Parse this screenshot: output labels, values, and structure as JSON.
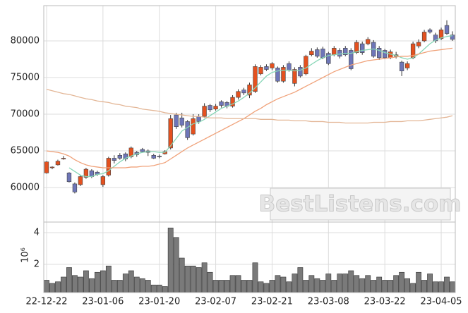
{
  "chart_data": [
    {
      "type": "candlestick",
      "watermark": "BestListens.com",
      "categories": [
        "22-12-22",
        null,
        null,
        null,
        null,
        null,
        null,
        null,
        null,
        null,
        "23-01-06",
        null,
        null,
        null,
        null,
        null,
        null,
        null,
        null,
        null,
        "23-01-20",
        null,
        null,
        null,
        null,
        null,
        null,
        null,
        null,
        null,
        "23-02-07",
        null,
        null,
        null,
        null,
        null,
        null,
        null,
        null,
        null,
        "23-02-21",
        null,
        null,
        null,
        null,
        null,
        null,
        null,
        null,
        null,
        "23-03-08",
        null,
        null,
        null,
        null,
        null,
        null,
        null,
        null,
        null,
        "23-03-22",
        null,
        null,
        null,
        null,
        null,
        null,
        null,
        null,
        null,
        "23-04-05",
        null,
        null
      ],
      "open": [
        62000,
        62700,
        63100,
        63900,
        62000,
        60500,
        60400,
        61400,
        62300,
        62100,
        60400,
        61700,
        64000,
        64400,
        64600,
        64200,
        64800,
        65200,
        65000,
        64400,
        64300,
        64600,
        65400,
        69900,
        69500,
        69000,
        67300,
        69700,
        69700,
        71200,
        70700,
        71700,
        71600,
        71100,
        72300,
        73300,
        72600,
        73100,
        75500,
        76500,
        76300,
        76300,
        74500,
        76900,
        74200,
        76400,
        75500,
        78100,
        78800,
        78900,
        78300,
        78100,
        78700,
        79000,
        78700,
        78400,
        79600,
        79600,
        79800,
        79000,
        78700,
        77700,
        77900,
        77100,
        76300,
        77700,
        79300,
        80000,
        81500,
        80800,
        80300,
        82100,
        80800
      ],
      "high": [
        63600,
        62900,
        63800,
        64300,
        62100,
        60700,
        61700,
        62700,
        62500,
        62300,
        61700,
        64200,
        64400,
        64700,
        64800,
        65600,
        65000,
        65400,
        65200,
        64600,
        64500,
        65100,
        69900,
        70200,
        70200,
        69200,
        70000,
        70000,
        71500,
        71400,
        71400,
        71900,
        71800,
        72600,
        73400,
        73600,
        74300,
        76800,
        76700,
        76800,
        77100,
        76500,
        76700,
        77200,
        76400,
        76700,
        78100,
        79000,
        79100,
        79200,
        78500,
        79300,
        79000,
        79300,
        79000,
        80100,
        79900,
        80500,
        80100,
        79300,
        78900,
        78800,
        78500,
        77300,
        77200,
        79900,
        80200,
        81500,
        81700,
        81100,
        81800,
        82800,
        81300
      ],
      "low": [
        61900,
        62500,
        63000,
        63800,
        60700,
        59200,
        60200,
        61200,
        61300,
        61600,
        60100,
        61500,
        63300,
        63800,
        63600,
        64000,
        64200,
        64800,
        64300,
        63900,
        64000,
        64500,
        65200,
        68000,
        68200,
        66500,
        67100,
        68700,
        69500,
        70300,
        70500,
        70900,
        70800,
        70900,
        72000,
        72600,
        72200,
        72900,
        75300,
        75900,
        76000,
        74300,
        74300,
        75800,
        73800,
        75000,
        75300,
        77900,
        77700,
        77500,
        76700,
        77900,
        77600,
        77900,
        76000,
        78200,
        78100,
        79400,
        77700,
        77400,
        77500,
        77500,
        77600,
        75200,
        76000,
        77500,
        79000,
        79800,
        81000,
        79700,
        80100,
        80800,
        80000
      ],
      "close": [
        63500,
        62800,
        63600,
        64000,
        60800,
        59400,
        61500,
        62500,
        61500,
        61800,
        61500,
        64000,
        63700,
        64000,
        63900,
        65400,
        64500,
        64900,
        64800,
        64000,
        64200,
        64900,
        69400,
        68300,
        68500,
        66800,
        69400,
        69000,
        71100,
        70600,
        71100,
        71200,
        71100,
        72300,
        73100,
        72900,
        74000,
        76500,
        76400,
        76100,
        76900,
        74500,
        76400,
        76000,
        76100,
        75200,
        77900,
        78600,
        77900,
        77700,
        76900,
        79000,
        77900,
        78100,
        76200,
        79800,
        78400,
        80200,
        77900,
        77700,
        77700,
        78500,
        78100,
        75900,
        76900,
        79600,
        79800,
        81200,
        81200,
        80000,
        81500,
        81000,
        80200
      ],
      "up_color": "#e4511f",
      "down_color": "#6e76b8",
      "lines": [
        {
          "color": "#86d6b6",
          "values": [
            null,
            null,
            null,
            null,
            62700,
            62200,
            61700,
            61500,
            61500,
            61800,
            61900,
            62300,
            62900,
            63500,
            64000,
            64300,
            64600,
            64800,
            64900,
            64900,
            64800,
            64800,
            65700,
            66700,
            67700,
            68200,
            68700,
            68900,
            69300,
            69800,
            70300,
            70800,
            71100,
            71400,
            71800,
            72300,
            72900,
            73600,
            74400,
            75200,
            75700,
            75900,
            76000,
            76000,
            75900,
            76000,
            76300,
            76800,
            77300,
            77700,
            78000,
            78100,
            78200,
            78300,
            78300,
            78500,
            78700,
            78800,
            78900,
            78700,
            78400,
            78200,
            78000,
            77700,
            77500,
            77700,
            78200,
            78900,
            79600,
            80100,
            80400,
            80600,
            80700
          ]
        },
        {
          "color": "#f0a27a",
          "values": [
            65000,
            64900,
            64800,
            64600,
            64300,
            63800,
            63400,
            63100,
            62900,
            62800,
            62700,
            62700,
            62700,
            62700,
            62700,
            62800,
            62800,
            62900,
            62900,
            63000,
            63200,
            63400,
            63900,
            64400,
            64900,
            65400,
            65800,
            66200,
            66600,
            67000,
            67400,
            67800,
            68200,
            68600,
            69000,
            69400,
            69900,
            70400,
            70800,
            71300,
            71700,
            72100,
            72400,
            72700,
            73000,
            73400,
            73800,
            74200,
            74600,
            75000,
            75400,
            75800,
            76100,
            76400,
            76700,
            76900,
            77100,
            77300,
            77400,
            77500,
            77600,
            77700,
            77800,
            77900,
            77900,
            78000,
            78200,
            78400,
            78600,
            78700,
            78800,
            78900,
            79000
          ]
        },
        {
          "color": "#e3b696",
          "values": [
            73400,
            73200,
            73000,
            72800,
            72700,
            72500,
            72300,
            72100,
            72000,
            71800,
            71700,
            71600,
            71400,
            71300,
            71100,
            71000,
            70900,
            70700,
            70600,
            70500,
            70400,
            70200,
            70100,
            70000,
            69900,
            69800,
            69700,
            69700,
            69600,
            69500,
            69500,
            69500,
            69400,
            69400,
            69400,
            69400,
            69400,
            69400,
            69300,
            69300,
            69300,
            69200,
            69200,
            69200,
            69100,
            69100,
            69100,
            69000,
            69000,
            69000,
            68900,
            68900,
            68900,
            68800,
            68800,
            68800,
            68800,
            68800,
            68900,
            68900,
            68900,
            69000,
            69000,
            69000,
            69100,
            69100,
            69100,
            69200,
            69300,
            69400,
            69500,
            69600,
            69800
          ]
        }
      ],
      "ylim": [
        55300,
        84800
      ],
      "yticks": [
        60000,
        65000,
        70000,
        75000,
        80000
      ],
      "grid": true
    },
    {
      "type": "bar",
      "y_label": "10⁶",
      "color": "#7a7a7a",
      "values": [
        1.0,
        0.8,
        0.9,
        1.2,
        1.8,
        1.3,
        1.2,
        1.6,
        1.1,
        1.5,
        1.6,
        1.9,
        1.0,
        1.0,
        1.4,
        1.6,
        1.2,
        1.1,
        1.0,
        0.7,
        0.7,
        0.6,
        4.3,
        3.7,
        2.4,
        1.9,
        1.9,
        1.8,
        2.1,
        1.5,
        1.0,
        1.0,
        1.0,
        1.3,
        1.3,
        1.0,
        1.0,
        2.1,
        0.9,
        0.8,
        1.0,
        1.3,
        1.2,
        0.9,
        1.4,
        1.8,
        1.0,
        1.3,
        1.1,
        1.0,
        1.4,
        1.0,
        1.4,
        1.4,
        1.6,
        1.3,
        1.1,
        1.3,
        1.0,
        1.2,
        1.0,
        1.0,
        1.3,
        1.5,
        1.1,
        0.8,
        1.5,
        1.0,
        1.4,
        0.9,
        0.9,
        1.2,
        0.9
      ],
      "ylim": [
        0.22,
        4.67
      ],
      "yticks": [
        2,
        4
      ],
      "grid": true
    }
  ]
}
